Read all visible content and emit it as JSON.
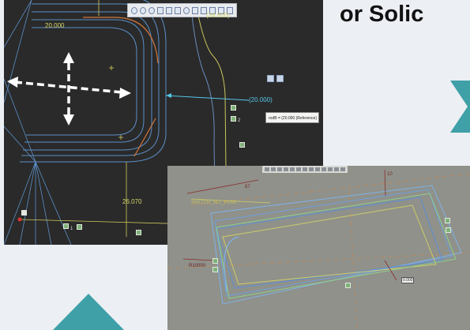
{
  "heading": "or Solic",
  "screenshot_top": {
    "toolbar_icons": [
      "zoom-in-icon",
      "zoom-out-icon",
      "zoom-fit-icon",
      "refit-icon",
      "repaint-icon",
      "view-icon",
      "orient-icon",
      "display-style-icon",
      "datum-icon",
      "axis-icon",
      "point-icon",
      "csys-icon"
    ],
    "dimensions": {
      "d1": "20.000",
      "d2": "(34.600)",
      "d3": "(20.000)",
      "d4": "26.070"
    },
    "tooltip": "rodB = (20.000 (Reference)",
    "constraint_label": "2",
    "small_label": "1"
  },
  "screenshot_bottom": {
    "dimensions": {
      "radius": "R10000",
      "top_len": "87",
      "right": "10",
      "input_value": "0.000"
    },
    "sketch_plane_label": "SKETCH_SLT_PLAN"
  },
  "colors": {
    "accent_teal": "#3fa0a8",
    "dark_bg": "#2a2a2a",
    "gray_bg": "#8f918a"
  }
}
